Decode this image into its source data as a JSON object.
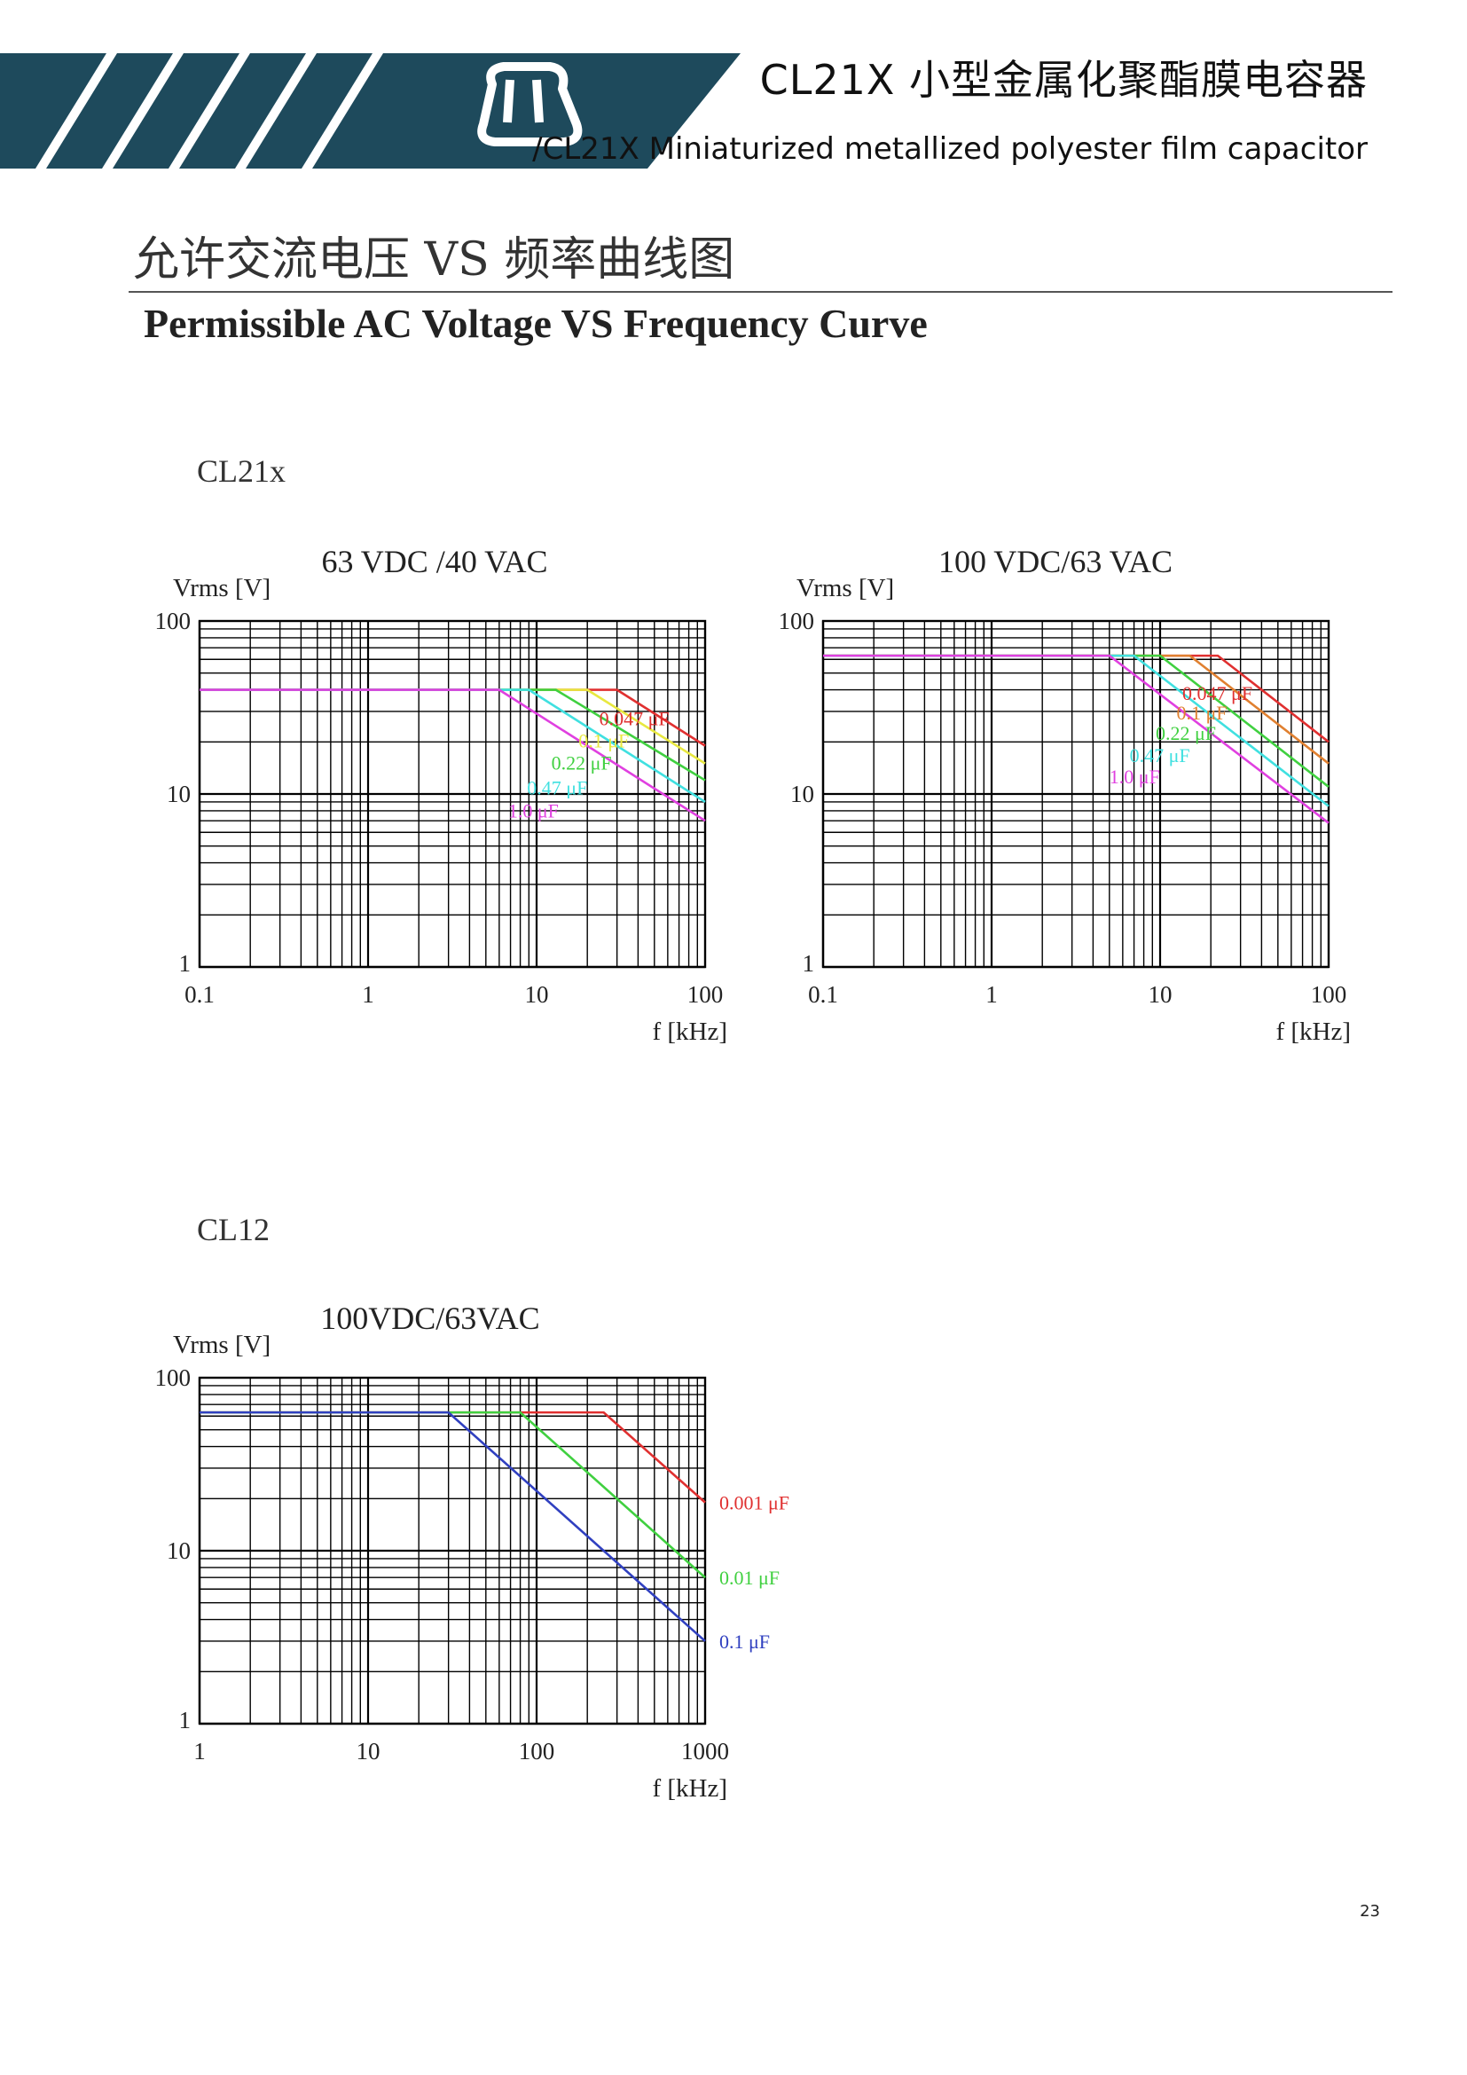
{
  "header": {
    "title_zh": "CL21X 小型金属化聚酯膜电容器",
    "title_en": "/CL21X Miniaturized metallized polyester film capacitor",
    "colors": {
      "banner": "#1e4a5c",
      "stripes": "#ffffff"
    },
    "logo_icon": "company-logo-icon"
  },
  "section": {
    "title_zh": "允许交流电压 VS 频率曲线图",
    "title_en": "Permissible AC Voltage VS Frequency Curve"
  },
  "series_labels": {
    "cl21x": "CL21x",
    "cl12": "CL12"
  },
  "chart_data": [
    {
      "type": "line",
      "title": "63 VDC /40 VAC",
      "ylabel": "Vrms [V]",
      "xlabel": "f [kHz]",
      "xscale": "log",
      "yscale": "log",
      "xlim": [
        0.1,
        100
      ],
      "ylim": [
        1,
        100
      ],
      "xticks": [
        "0.1",
        "1",
        "10",
        "100"
      ],
      "yticks": [
        "1",
        "10",
        "100"
      ],
      "grid": true,
      "series": [
        {
          "name": "0.047 μF",
          "color": "#e03030",
          "x": [
            0.1,
            30,
            100
          ],
          "y": [
            40,
            40,
            19
          ]
        },
        {
          "name": "0.1 μF",
          "color": "#e8e840",
          "x": [
            0.1,
            20,
            100
          ],
          "y": [
            40,
            40,
            15
          ]
        },
        {
          "name": "0.22 μF",
          "color": "#40d040",
          "x": [
            0.1,
            13,
            100
          ],
          "y": [
            40,
            40,
            12
          ]
        },
        {
          "name": "0.47 μF",
          "color": "#40e0e0",
          "x": [
            0.1,
            9,
            100
          ],
          "y": [
            40,
            40,
            9
          ]
        },
        {
          "name": "1.0 μF",
          "color": "#e040e0",
          "x": [
            0.1,
            6,
            100
          ],
          "y": [
            40,
            40,
            7
          ]
        }
      ],
      "line_labels": [
        "0.047 μF",
        "0.1 μF",
        "0.22 μF",
        "0.47 μF",
        "1.0 μF"
      ]
    },
    {
      "type": "line",
      "title": "100 VDC/63 VAC",
      "ylabel": "Vrms [V]",
      "xlabel": "f [kHz]",
      "xscale": "log",
      "yscale": "log",
      "xlim": [
        0.1,
        100
      ],
      "ylim": [
        1,
        100
      ],
      "xticks": [
        "0.1",
        "1",
        "10",
        "100"
      ],
      "yticks": [
        "1",
        "10",
        "100"
      ],
      "grid": true,
      "series": [
        {
          "name": "0.047 μF",
          "color": "#e03030",
          "x": [
            0.1,
            22,
            100
          ],
          "y": [
            63,
            63,
            20
          ]
        },
        {
          "name": "0.1 μF",
          "color": "#e08030",
          "x": [
            0.1,
            15,
            100
          ],
          "y": [
            63,
            63,
            15
          ]
        },
        {
          "name": "0.22 μF",
          "color": "#40d040",
          "x": [
            0.1,
            10,
            100
          ],
          "y": [
            63,
            63,
            11
          ]
        },
        {
          "name": "0.47 μF",
          "color": "#40e0e0",
          "x": [
            0.1,
            7,
            100
          ],
          "y": [
            63,
            63,
            8.5
          ]
        },
        {
          "name": "1.0 μF",
          "color": "#e040e0",
          "x": [
            0.1,
            5,
            100
          ],
          "y": [
            63,
            63,
            6.8
          ]
        }
      ],
      "line_labels": [
        "0.047 μF",
        "0.1 μF",
        "0.22 μF",
        "0.47 μF",
        "1.0 μF"
      ]
    },
    {
      "type": "line",
      "title": "100VDC/63VAC",
      "ylabel": "Vrms [V]",
      "xlabel": "f [kHz]",
      "xscale": "log",
      "yscale": "log",
      "xlim": [
        1,
        1000
      ],
      "ylim": [
        1,
        100
      ],
      "xticks": [
        "1",
        "10",
        "100",
        "1000"
      ],
      "yticks": [
        "1",
        "10",
        "100"
      ],
      "grid": true,
      "series": [
        {
          "name": "0.001 μF",
          "color": "#e03030",
          "x": [
            1,
            250,
            1000
          ],
          "y": [
            63,
            63,
            19
          ]
        },
        {
          "name": "0.01 μF",
          "color": "#40d040",
          "x": [
            1,
            80,
            1000
          ],
          "y": [
            63,
            63,
            7
          ]
        },
        {
          "name": "0.1 μF",
          "color": "#3040c0",
          "x": [
            1,
            30,
            1000
          ],
          "y": [
            63,
            63,
            3
          ]
        }
      ],
      "line_labels": [
        "0.001 μF",
        "0.01 μF",
        "0.1 μF"
      ]
    }
  ],
  "page_number": "23"
}
